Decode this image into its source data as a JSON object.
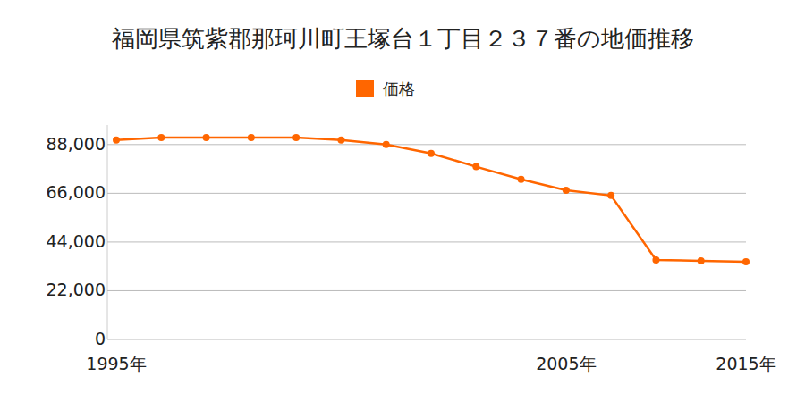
{
  "chart_data": {
    "type": "line",
    "title": "福岡県筑紫郡那珂川町王塚台１丁目２３７番の地価推移",
    "categories": [
      "1995年",
      null,
      null,
      null,
      null,
      null,
      null,
      null,
      null,
      null,
      "2005年",
      null,
      null,
      null,
      "2015年"
    ],
    "series": [
      {
        "name": "価格",
        "color": "#ff6600",
        "marker": "circle",
        "values": [
          90000,
          91200,
          91200,
          91200,
          91200,
          90000,
          88000,
          84000,
          78000,
          72300,
          67400,
          65000,
          35900,
          35500,
          35100
        ]
      }
    ],
    "ylim": [
      0,
      96800
    ],
    "yticks": [
      0,
      {
        "value": 22000,
        "label": "22,000"
      },
      {
        "value": 44000,
        "label": "44,000"
      },
      {
        "value": 66000,
        "label": "66,000"
      },
      {
        "value": 88000,
        "label": "88,000"
      }
    ],
    "grid": true,
    "legend": "top"
  }
}
